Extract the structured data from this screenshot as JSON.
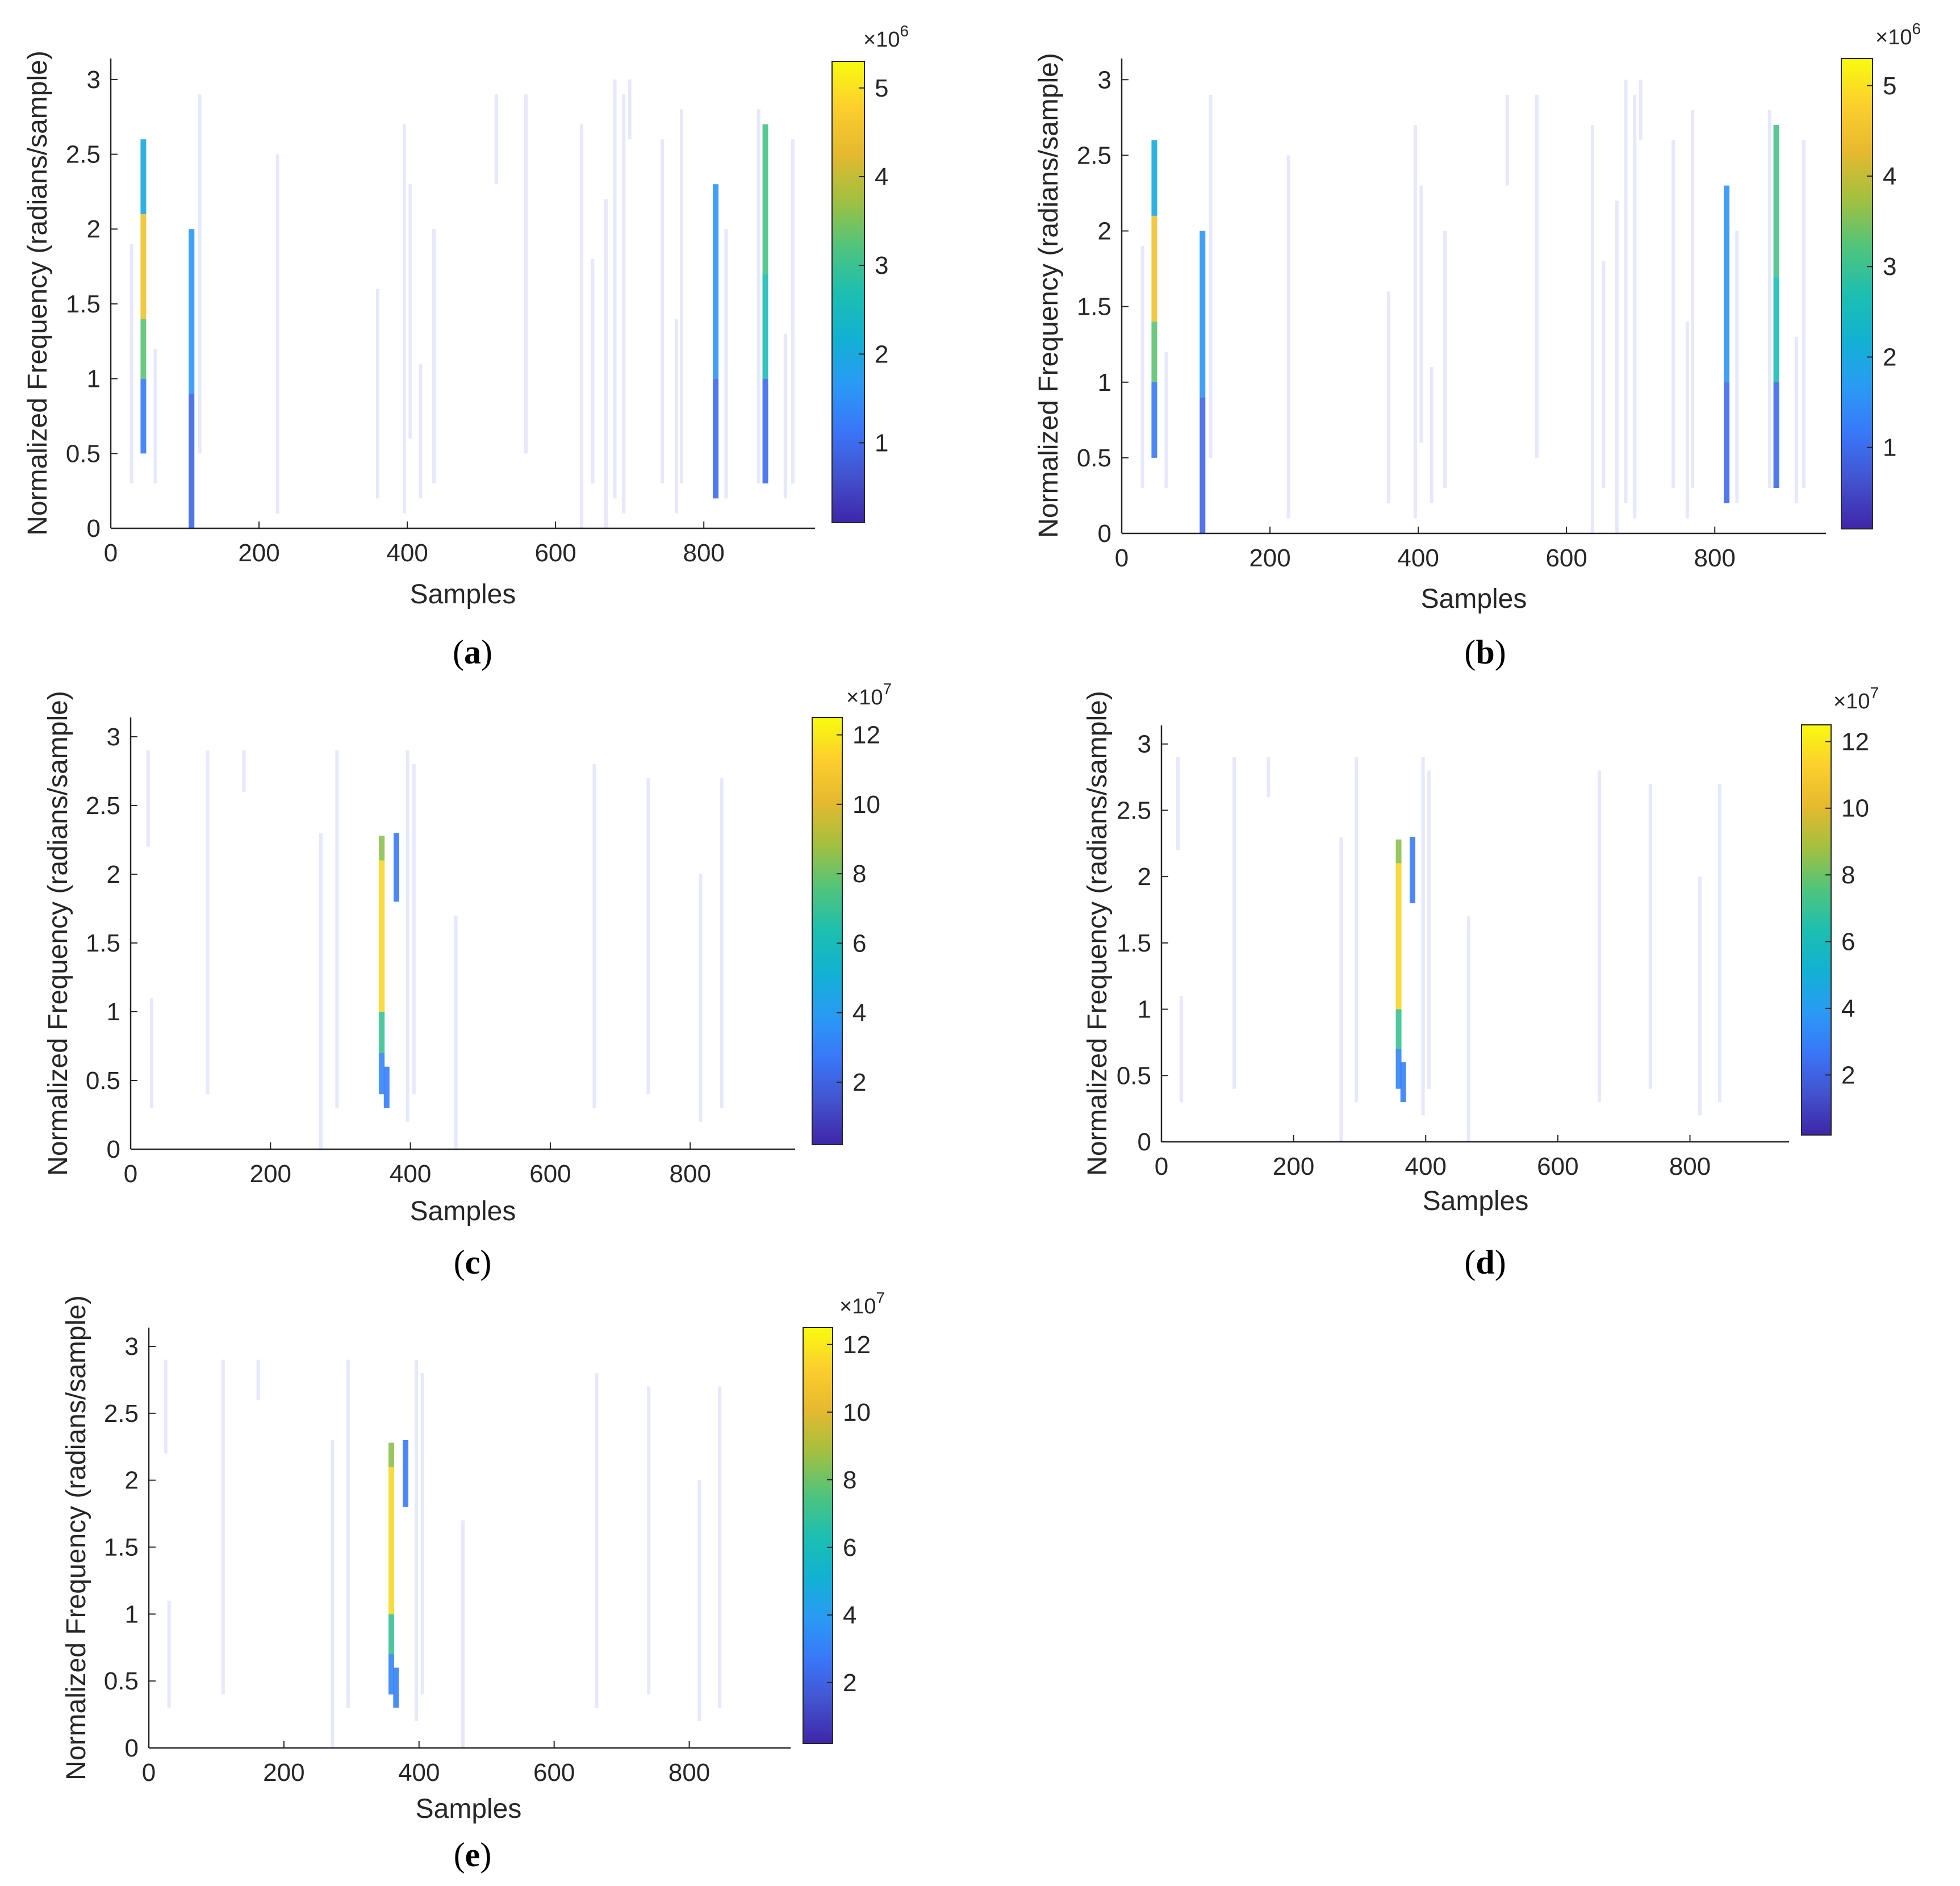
{
  "figure": {
    "panel_count": 5
  },
  "colormap": [
    "#3e26a8",
    "#4352ce",
    "#3a76f8",
    "#2a9af5",
    "#12b1d3",
    "#1dbfb0",
    "#51c47b",
    "#a2c03f",
    "#e5b92f",
    "#fcce2e",
    "#f9fb0e"
  ],
  "chart_data": [
    {
      "type": "heatmap",
      "label_letter": "a",
      "xlabel": "Samples",
      "ylabel": "Normalized Frequency (radians/sample)",
      "xlim": [
        0,
        950
      ],
      "ylim": [
        0,
        3.14
      ],
      "xticks": [
        0,
        200,
        400,
        600,
        800
      ],
      "yticks": [
        0,
        0.5,
        1,
        1.5,
        2,
        2.5,
        3
      ],
      "colorbar": {
        "min": 0.1,
        "max": 5.3,
        "ticks": [
          1,
          2,
          3,
          4,
          5
        ],
        "exponent": "×10",
        "exponent_power": "6"
      },
      "strong_lines": [
        {
          "x": 44,
          "segments": [
            [
              0.5,
              1.0,
              1.2
            ],
            [
              1.0,
              1.4,
              3.3
            ],
            [
              1.4,
              2.1,
              4.5
            ],
            [
              2.1,
              2.6,
              2.0
            ]
          ]
        },
        {
          "x": 109,
          "segments": [
            [
              0.0,
              0.9,
              0.9
            ],
            [
              0.9,
              2.0,
              1.6
            ]
          ]
        },
        {
          "x": 816,
          "segments": [
            [
              0.2,
              1.0,
              1.0
            ],
            [
              1.0,
              2.3,
              1.6
            ]
          ]
        },
        {
          "x": 883,
          "segments": [
            [
              0.3,
              1.0,
              1.0
            ],
            [
              1.0,
              1.7,
              2.6
            ],
            [
              1.7,
              2.7,
              3.1
            ]
          ]
        }
      ],
      "faint_lines": [
        [
          28,
          0.3,
          1.9
        ],
        [
          60,
          0.3,
          1.2
        ],
        [
          120,
          0.5,
          2.9
        ],
        [
          225,
          0.1,
          2.5
        ],
        [
          360,
          0.2,
          1.6
        ],
        [
          396,
          0.1,
          2.7
        ],
        [
          404,
          0.6,
          2.3
        ],
        [
          418,
          0.2,
          1.1
        ],
        [
          436,
          0.3,
          2.0
        ],
        [
          520,
          2.3,
          2.9
        ],
        [
          560,
          0.5,
          2.9
        ],
        [
          635,
          0.0,
          2.7
        ],
        [
          650,
          0.3,
          1.8
        ],
        [
          668,
          0.0,
          2.2
        ],
        [
          680,
          0.2,
          3.0
        ],
        [
          692,
          0.1,
          2.9
        ],
        [
          700,
          2.6,
          3.0
        ],
        [
          744,
          0.3,
          2.6
        ],
        [
          763,
          0.1,
          1.4
        ],
        [
          770,
          0.3,
          2.8
        ],
        [
          830,
          0.2,
          2.0
        ],
        [
          874,
          0.3,
          2.8
        ],
        [
          910,
          0.2,
          1.3
        ],
        [
          920,
          0.3,
          2.6
        ]
      ]
    },
    {
      "type": "heatmap",
      "label_letter": "b",
      "xlabel": "Samples",
      "ylabel": "Normalized Frequency (radians/sample)",
      "xlim": [
        0,
        950
      ],
      "ylim": [
        0,
        3.14
      ],
      "xticks": [
        0,
        200,
        400,
        600,
        800
      ],
      "yticks": [
        0,
        0.5,
        1,
        1.5,
        2,
        2.5,
        3
      ],
      "colorbar": {
        "min": 0.1,
        "max": 5.3,
        "ticks": [
          1,
          2,
          3,
          4,
          5
        ],
        "exponent": "×10",
        "exponent_power": "6"
      },
      "strong_lines": [
        {
          "x": 44,
          "segments": [
            [
              0.5,
              1.0,
              1.2
            ],
            [
              1.0,
              1.4,
              3.3
            ],
            [
              1.4,
              2.1,
              4.5
            ],
            [
              2.1,
              2.6,
              2.0
            ]
          ]
        },
        {
          "x": 109,
          "segments": [
            [
              0.0,
              0.9,
              0.9
            ],
            [
              0.9,
              2.0,
              1.6
            ]
          ]
        },
        {
          "x": 816,
          "segments": [
            [
              0.2,
              1.0,
              1.0
            ],
            [
              1.0,
              2.3,
              1.6
            ]
          ]
        },
        {
          "x": 883,
          "segments": [
            [
              0.3,
              1.0,
              1.0
            ],
            [
              1.0,
              1.7,
              2.6
            ],
            [
              1.7,
              2.7,
              3.1
            ]
          ]
        }
      ],
      "faint_lines": [
        [
          28,
          0.3,
          1.9
        ],
        [
          60,
          0.3,
          1.2
        ],
        [
          120,
          0.5,
          2.9
        ],
        [
          225,
          0.1,
          2.5
        ],
        [
          360,
          0.2,
          1.6
        ],
        [
          396,
          0.1,
          2.7
        ],
        [
          404,
          0.6,
          2.3
        ],
        [
          418,
          0.2,
          1.1
        ],
        [
          436,
          0.3,
          2.0
        ],
        [
          520,
          2.3,
          2.9
        ],
        [
          560,
          0.5,
          2.9
        ],
        [
          635,
          0.0,
          2.7
        ],
        [
          650,
          0.3,
          1.8
        ],
        [
          668,
          0.0,
          2.2
        ],
        [
          680,
          0.2,
          3.0
        ],
        [
          692,
          0.1,
          2.9
        ],
        [
          700,
          2.6,
          3.0
        ],
        [
          744,
          0.3,
          2.6
        ],
        [
          763,
          0.1,
          1.4
        ],
        [
          770,
          0.3,
          2.8
        ],
        [
          830,
          0.2,
          2.0
        ],
        [
          874,
          0.3,
          2.8
        ],
        [
          910,
          0.2,
          1.3
        ],
        [
          920,
          0.3,
          2.6
        ]
      ]
    },
    {
      "type": "heatmap",
      "label_letter": "c",
      "xlabel": "Samples",
      "ylabel": "Normalized Frequency (radians/sample)",
      "xlim": [
        0,
        950
      ],
      "ylim": [
        0,
        3.14
      ],
      "xticks": [
        0,
        200,
        400,
        600,
        800
      ],
      "yticks": [
        0,
        0.5,
        1,
        1.5,
        2,
        2.5,
        3
      ],
      "colorbar": {
        "min": 0.2,
        "max": 12.5,
        "ticks": [
          2,
          4,
          6,
          8,
          10,
          12
        ],
        "exponent": "×10",
        "exponent_power": "7"
      },
      "strong_lines": [
        {
          "x": 359,
          "segments": [
            [
              0.4,
              0.7,
              3.2
            ],
            [
              0.7,
              1.0,
              7.0
            ],
            [
              1.0,
              2.1,
              11.5
            ],
            [
              2.1,
              2.28,
              8.5
            ]
          ]
        },
        {
          "x": 366,
          "segments": [
            [
              0.3,
              0.6,
              3.0
            ]
          ]
        },
        {
          "x": 380,
          "segments": [
            [
              1.8,
              2.3,
              2.8
            ]
          ]
        }
      ],
      "faint_lines": [
        [
          25,
          2.2,
          2.9
        ],
        [
          30,
          0.3,
          1.1
        ],
        [
          110,
          0.4,
          2.9
        ],
        [
          162,
          2.6,
          2.9
        ],
        [
          272,
          0.0,
          2.3
        ],
        [
          295,
          0.3,
          2.9
        ],
        [
          396,
          0.2,
          2.9
        ],
        [
          405,
          0.4,
          2.8
        ],
        [
          465,
          0.0,
          1.7
        ],
        [
          663,
          0.3,
          2.8
        ],
        [
          740,
          0.4,
          2.7
        ],
        [
          815,
          0.2,
          2.0
        ],
        [
          845,
          0.3,
          2.7
        ]
      ]
    },
    {
      "type": "heatmap",
      "label_letter": "d",
      "xlabel": "Samples",
      "ylabel": "Normalized Frequency (radians/sample)",
      "xlim": [
        0,
        950
      ],
      "ylim": [
        0,
        3.14
      ],
      "xticks": [
        0,
        200,
        400,
        600,
        800
      ],
      "yticks": [
        0,
        0.5,
        1,
        1.5,
        2,
        2.5,
        3
      ],
      "colorbar": {
        "min": 0.2,
        "max": 12.5,
        "ticks": [
          2,
          4,
          6,
          8,
          10,
          12
        ],
        "exponent": "×10",
        "exponent_power": "7"
      },
      "strong_lines": [
        {
          "x": 359,
          "segments": [
            [
              0.4,
              0.7,
              3.2
            ],
            [
              0.7,
              1.0,
              7.0
            ],
            [
              1.0,
              2.1,
              11.5
            ],
            [
              2.1,
              2.28,
              8.5
            ]
          ]
        },
        {
          "x": 366,
          "segments": [
            [
              0.3,
              0.6,
              3.0
            ]
          ]
        },
        {
          "x": 380,
          "segments": [
            [
              1.8,
              2.3,
              2.8
            ]
          ]
        }
      ],
      "faint_lines": [
        [
          25,
          2.2,
          2.9
        ],
        [
          30,
          0.3,
          1.1
        ],
        [
          110,
          0.4,
          2.9
        ],
        [
          162,
          2.6,
          2.9
        ],
        [
          272,
          0.0,
          2.3
        ],
        [
          295,
          0.3,
          2.9
        ],
        [
          396,
          0.2,
          2.9
        ],
        [
          405,
          0.4,
          2.8
        ],
        [
          465,
          0.0,
          1.7
        ],
        [
          663,
          0.3,
          2.8
        ],
        [
          740,
          0.4,
          2.7
        ],
        [
          815,
          0.2,
          2.0
        ],
        [
          845,
          0.3,
          2.7
        ]
      ]
    },
    {
      "type": "heatmap",
      "label_letter": "e",
      "xlabel": "Samples",
      "ylabel": "Normalized Frequency (radians/sample)",
      "xlim": [
        0,
        950
      ],
      "ylim": [
        0,
        3.14
      ],
      "xticks": [
        0,
        200,
        400,
        600,
        800
      ],
      "yticks": [
        0,
        0.5,
        1,
        1.5,
        2,
        2.5,
        3
      ],
      "colorbar": {
        "min": 0.2,
        "max": 12.5,
        "ticks": [
          2,
          4,
          6,
          8,
          10,
          12
        ],
        "exponent": "×10",
        "exponent_power": "7"
      },
      "strong_lines": [
        {
          "x": 359,
          "segments": [
            [
              0.4,
              0.7,
              3.2
            ],
            [
              0.7,
              1.0,
              7.0
            ],
            [
              1.0,
              2.1,
              11.5
            ],
            [
              2.1,
              2.28,
              8.5
            ]
          ]
        },
        {
          "x": 366,
          "segments": [
            [
              0.3,
              0.6,
              3.0
            ]
          ]
        },
        {
          "x": 380,
          "segments": [
            [
              1.8,
              2.3,
              2.8
            ]
          ]
        }
      ],
      "faint_lines": [
        [
          25,
          2.2,
          2.9
        ],
        [
          30,
          0.3,
          1.1
        ],
        [
          110,
          0.4,
          2.9
        ],
        [
          162,
          2.6,
          2.9
        ],
        [
          272,
          0.0,
          2.3
        ],
        [
          295,
          0.3,
          2.9
        ],
        [
          396,
          0.2,
          2.9
        ],
        [
          405,
          0.4,
          2.8
        ],
        [
          465,
          0.0,
          1.7
        ],
        [
          663,
          0.3,
          2.8
        ],
        [
          740,
          0.4,
          2.7
        ],
        [
          815,
          0.2,
          2.0
        ],
        [
          845,
          0.3,
          2.7
        ]
      ]
    }
  ]
}
